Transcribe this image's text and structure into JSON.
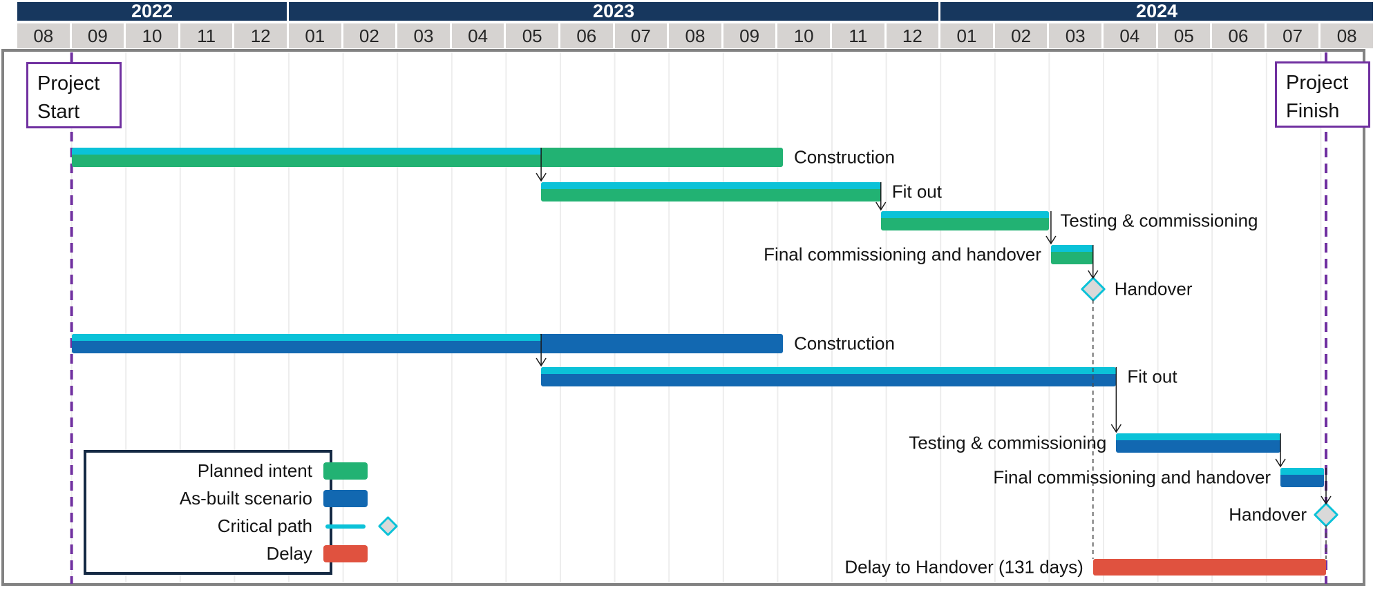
{
  "colors": {
    "navy": "#17375e",
    "cellgray": "#d6d3d1",
    "green": "#22b273",
    "blue": "#1268b1",
    "cyan": "#0bc2d8",
    "red": "#e0523f",
    "purple": "#7030a0",
    "frame": "#828282",
    "legendborder": "#152a44",
    "diamondfill": "#d9d9d9",
    "gridline": "#ededed",
    "connector": "#1a1a1a",
    "dashedlink": "#4d4d4d"
  },
  "header": {
    "years": [
      {
        "label": "2022",
        "months": [
          "08",
          "09",
          "10",
          "11",
          "12"
        ]
      },
      {
        "label": "2023",
        "months": [
          "01",
          "02",
          "03",
          "04",
          "05",
          "06",
          "07",
          "08",
          "09",
          "10",
          "11",
          "12"
        ]
      },
      {
        "label": "2024",
        "months": [
          "01",
          "02",
          "03",
          "04",
          "05",
          "06",
          "07",
          "08"
        ]
      }
    ]
  },
  "annotations": {
    "project_start": {
      "label": "Project Start",
      "date": "2022-09-01"
    },
    "project_finish": {
      "label": "Project Finish",
      "date": "2024-08-04"
    }
  },
  "legend": [
    {
      "label": "Planned intent",
      "swatch": "green"
    },
    {
      "label": "As-built scenario",
      "swatch": "blue"
    },
    {
      "label": "Critical path",
      "swatch": "cyan-line-and-diamond"
    },
    {
      "label": "Delay",
      "swatch": "red"
    }
  ],
  "chart_data": {
    "type": "gantt",
    "timeline_start": "2022-08-01",
    "timeline_end": "2024-09-01",
    "timeline_unit": "month",
    "sections": [
      {
        "key": "planned",
        "name": "Planned intent",
        "color_key": "green",
        "tasks": [
          {
            "name": "Construction",
            "start": "2022-09-01",
            "end": "2023-10-04",
            "critical_until": "2023-05-21",
            "label_side": "right"
          },
          {
            "name": "Fit out",
            "start": "2023-05-21",
            "end": "2023-11-28",
            "critical": true,
            "label_side": "right"
          },
          {
            "name": "Testing & commissioning",
            "start": "2023-11-28",
            "end": "2024-03-01",
            "critical": true,
            "label_side": "right"
          },
          {
            "name": "Final commissioning and handover",
            "start": "2024-03-02",
            "end": "2024-03-26",
            "critical": true,
            "label_side": "left"
          },
          {
            "name": "Handover",
            "milestone": true,
            "date": "2024-03-26",
            "label_side": "right"
          }
        ]
      },
      {
        "key": "asbuilt",
        "name": "As-built scenario",
        "color_key": "blue",
        "tasks": [
          {
            "name": "Construction",
            "start": "2022-09-01",
            "end": "2023-10-04",
            "critical_until": "2023-05-21",
            "label_side": "right"
          },
          {
            "name": "Fit out",
            "start": "2023-05-21",
            "end": "2024-04-08",
            "critical": true,
            "label_side": "right"
          },
          {
            "name": "Testing & commissioning",
            "start": "2024-04-08",
            "end": "2024-07-09",
            "critical": true,
            "label_side": "left"
          },
          {
            "name": "Final commissioning and handover",
            "start": "2024-07-09",
            "end": "2024-08-03",
            "critical": true,
            "label_side": "left"
          },
          {
            "name": "Handover",
            "milestone": true,
            "date": "2024-08-04",
            "label_side": "left"
          }
        ]
      },
      {
        "key": "delay",
        "name": "Delay",
        "color_key": "red",
        "tasks": [
          {
            "name": "Delay to Handover (131 days)",
            "start": "2024-03-26",
            "end": "2024-08-04",
            "label_side": "left"
          }
        ]
      }
    ]
  }
}
